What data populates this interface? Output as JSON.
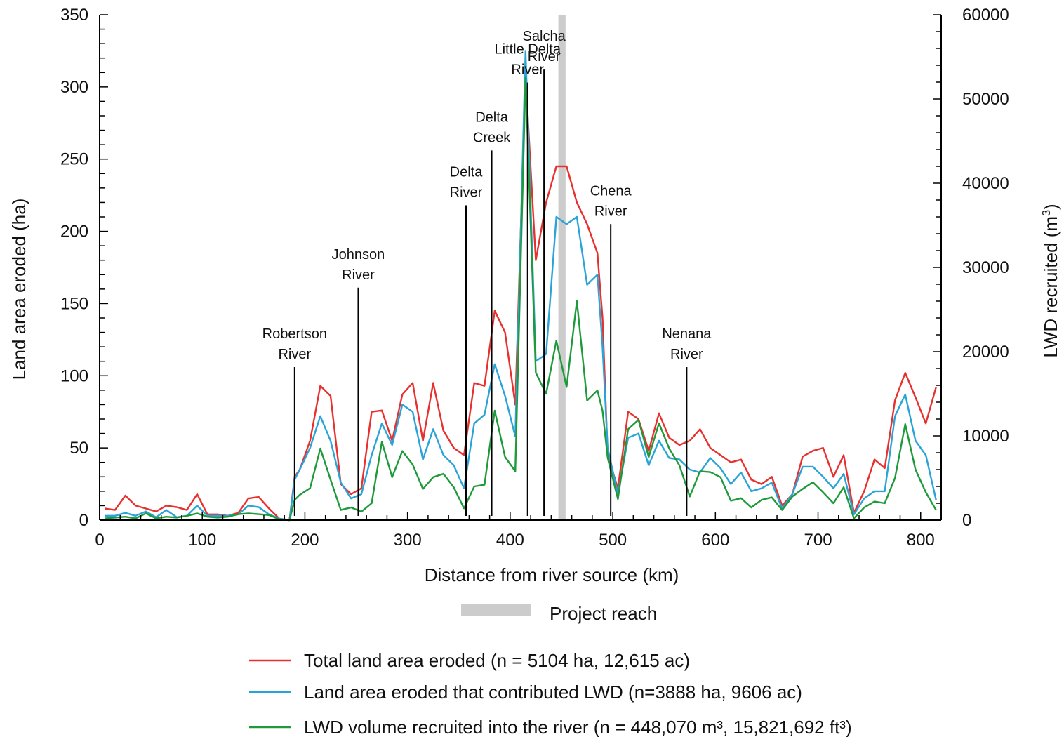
{
  "chart_data": {
    "type": "line",
    "xlabel": "Distance from river source (km)",
    "ylabel": "Land area eroded (ha)",
    "y2label": "LWD recruited (m",
    "y2label_sup": "3",
    "y2label_close": ")",
    "xlim": [
      0,
      820
    ],
    "ylim": [
      0,
      350
    ],
    "y2lim": [
      0,
      60000
    ],
    "xticks": [
      0,
      100,
      200,
      300,
      400,
      500,
      600,
      700,
      800
    ],
    "yticks": [
      0,
      50,
      100,
      150,
      200,
      250,
      300,
      350
    ],
    "y2ticks": [
      0,
      10000,
      20000,
      30000,
      40000,
      50000,
      60000
    ],
    "project_reach": {
      "label": "Project reach",
      "x_start": 447,
      "x_end": 454,
      "color": "#cccccc"
    },
    "tributaries": [
      {
        "lines": [
          "Robertson",
          "River"
        ],
        "x": 190,
        "y_top": 106
      },
      {
        "lines": [
          "Johnson",
          "River"
        ],
        "x": 252,
        "y_top": 161
      },
      {
        "lines": [
          "Delta",
          "River"
        ],
        "x": 357,
        "y_top": 218
      },
      {
        "lines": [
          "Delta",
          "Creek"
        ],
        "x": 382,
        "y_top": 256
      },
      {
        "lines": [
          "Little Delta",
          "River"
        ],
        "x": 417,
        "y_top": 303
      },
      {
        "lines": [
          "Salcha",
          "River"
        ],
        "x": 433,
        "y_top": 312
      },
      {
        "lines": [
          "Chena",
          "River"
        ],
        "x": 498,
        "y_top": 205
      },
      {
        "lines": [
          "Nenana",
          "River"
        ],
        "x": 572,
        "y_top": 106
      }
    ],
    "series": [
      {
        "name": "Total land area eroded (n = 5104 ha, 12,615 ac)",
        "axis": "left",
        "color": "#e8312f",
        "x": [
          5,
          15,
          25,
          35,
          45,
          55,
          65,
          75,
          85,
          95,
          105,
          115,
          125,
          135,
          145,
          155,
          165,
          175,
          185,
          190,
          195,
          205,
          215,
          225,
          235,
          245,
          255,
          265,
          275,
          285,
          295,
          305,
          315,
          325,
          335,
          345,
          355,
          365,
          375,
          385,
          395,
          405,
          415,
          425,
          435,
          445,
          455,
          465,
          475,
          485,
          490,
          495,
          505,
          515,
          525,
          535,
          545,
          555,
          565,
          575,
          585,
          595,
          605,
          615,
          625,
          635,
          645,
          655,
          665,
          675,
          685,
          695,
          705,
          715,
          725,
          735,
          745,
          755,
          765,
          775,
          785,
          795,
          805,
          815
        ],
        "y": [
          8,
          7,
          17,
          10,
          8,
          6,
          10,
          9,
          7,
          18,
          4,
          4,
          3,
          5,
          15,
          16,
          8,
          1,
          0,
          30,
          35,
          55,
          93,
          86,
          25,
          18,
          22,
          75,
          76,
          55,
          87,
          95,
          55,
          95,
          62,
          50,
          45,
          95,
          93,
          145,
          130,
          80,
          307,
          180,
          220,
          245,
          245,
          220,
          205,
          185,
          140,
          45,
          22,
          75,
          70,
          48,
          74,
          57,
          52,
          55,
          63,
          50,
          45,
          40,
          42,
          28,
          25,
          30,
          10,
          18,
          44,
          48,
          50,
          30,
          45,
          5,
          20,
          42,
          36,
          83,
          102,
          85,
          67,
          92
        ]
      },
      {
        "name": "Land area eroded that contributed LWD (n=3888 ha, 9606 ac)",
        "axis": "left",
        "color": "#2aa4d8",
        "x": [
          5,
          15,
          25,
          35,
          45,
          55,
          65,
          75,
          85,
          95,
          105,
          115,
          125,
          135,
          145,
          155,
          165,
          175,
          185,
          190,
          195,
          205,
          215,
          225,
          235,
          245,
          255,
          265,
          275,
          285,
          295,
          305,
          315,
          325,
          335,
          345,
          355,
          365,
          375,
          385,
          395,
          405,
          415,
          425,
          435,
          445,
          455,
          465,
          475,
          485,
          490,
          495,
          505,
          515,
          525,
          535,
          545,
          555,
          565,
          575,
          585,
          595,
          605,
          615,
          625,
          635,
          645,
          655,
          665,
          675,
          685,
          695,
          705,
          715,
          725,
          735,
          745,
          755,
          765,
          775,
          785,
          795,
          805,
          815
        ],
        "y": [
          3,
          3,
          5,
          3,
          6,
          2,
          7,
          2,
          3,
          10,
          3,
          3,
          3,
          4,
          10,
          9,
          4,
          1,
          0,
          28,
          35,
          50,
          72,
          55,
          26,
          15,
          18,
          45,
          67,
          52,
          80,
          75,
          42,
          63,
          45,
          38,
          22,
          67,
          73,
          108,
          86,
          58,
          325,
          110,
          115,
          210,
          205,
          210,
          163,
          170,
          120,
          50,
          18,
          57,
          60,
          38,
          55,
          43,
          42,
          35,
          33,
          43,
          36,
          25,
          33,
          20,
          22,
          26,
          8,
          18,
          37,
          37,
          30,
          22,
          32,
          4,
          15,
          20,
          20,
          72,
          87,
          55,
          45,
          14
        ]
      },
      {
        "name": "LWD volume recruited into the river (n = 448,070 m³, 15,821,692 ft³)",
        "axis": "right",
        "color": "#1f9a3a",
        "x": [
          5,
          15,
          25,
          35,
          45,
          55,
          65,
          75,
          85,
          95,
          105,
          115,
          125,
          135,
          145,
          155,
          165,
          175,
          185,
          190,
          195,
          205,
          215,
          225,
          235,
          245,
          255,
          265,
          275,
          285,
          295,
          305,
          315,
          325,
          335,
          345,
          355,
          365,
          375,
          385,
          395,
          405,
          415,
          425,
          435,
          445,
          455,
          465,
          475,
          485,
          490,
          495,
          505,
          515,
          525,
          535,
          545,
          555,
          565,
          575,
          585,
          595,
          605,
          615,
          625,
          635,
          645,
          655,
          665,
          675,
          685,
          695,
          705,
          715,
          725,
          735,
          745,
          755,
          765,
          775,
          785,
          795,
          805,
          815
        ],
        "y": [
          200,
          300,
          400,
          200,
          800,
          200,
          400,
          300,
          500,
          800,
          400,
          300,
          400,
          700,
          800,
          700,
          600,
          100,
          0,
          2400,
          3000,
          3800,
          8500,
          4800,
          1200,
          1500,
          1000,
          2000,
          9300,
          5100,
          8200,
          6600,
          3700,
          5100,
          5500,
          3900,
          1400,
          4000,
          4200,
          13000,
          7500,
          5800,
          52500,
          17500,
          15000,
          21300,
          15800,
          26000,
          14200,
          15400,
          13000,
          7400,
          2500,
          10800,
          11900,
          7500,
          11500,
          8500,
          6500,
          2800,
          5800,
          5700,
          5100,
          2300,
          2600,
          1500,
          2400,
          2700,
          1200,
          2800,
          3700,
          4500,
          3300,
          2000,
          3900,
          200,
          1500,
          2200,
          2000,
          5000,
          11400,
          6000,
          3300,
          1200
        ]
      }
    ]
  }
}
